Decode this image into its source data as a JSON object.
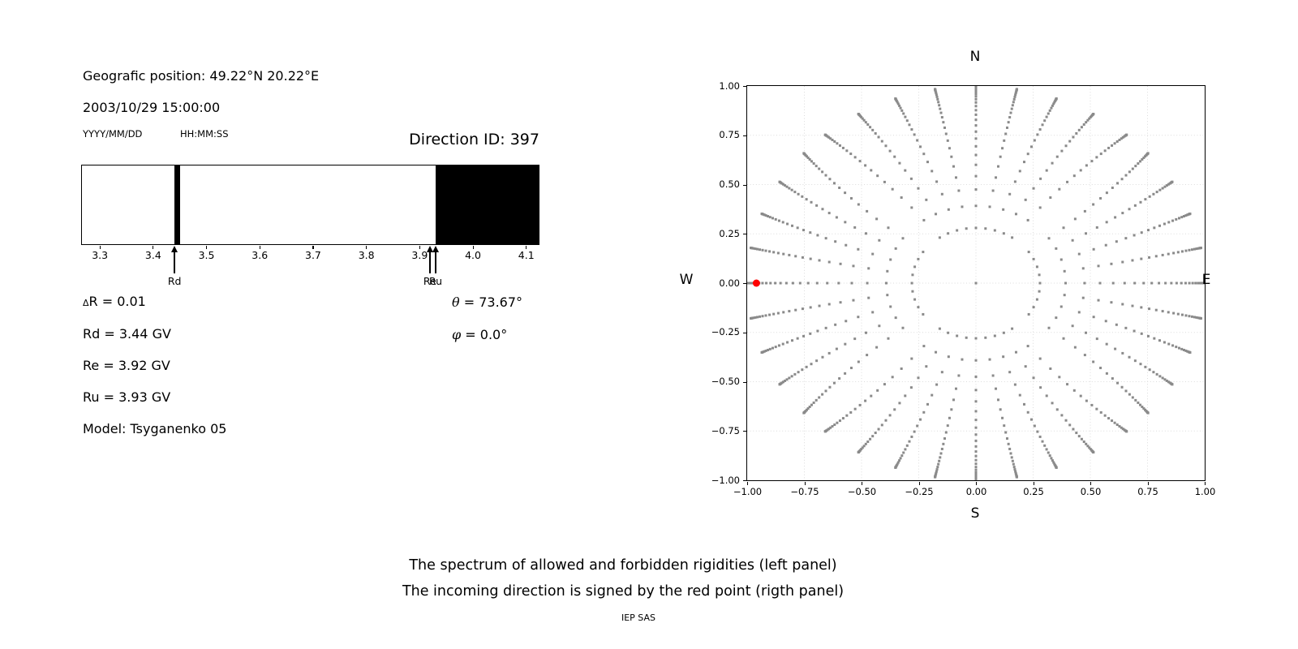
{
  "header": {
    "geographic_position": "Geografic position: 49.22°N 20.22°E",
    "datetime": "2003/10/29 15:00:00",
    "date_format": "YYYY/MM/DD",
    "time_format": "HH:MM:SS",
    "direction_id": "Direction ID: 397"
  },
  "info": {
    "delta_symbol": "Δ",
    "delta_rest": "R = 0.01",
    "rd": "Rd = 3.44 GV",
    "re": "Re = 3.92 GV",
    "ru": "Ru = 3.93 GV",
    "model": "Model: Tsyganenko 05",
    "theta_symbol": "θ",
    "theta_rest": " = 73.67°",
    "phi_symbol": "φ",
    "phi_rest": " = 0.0°"
  },
  "caption": {
    "line1": "The spectrum of allowed and forbidden rigidities (left panel)",
    "line2": "The incoming direction is signed by the red point (rigth panel)",
    "credit": "IEP SAS"
  },
  "chart_data": [
    {
      "type": "bar",
      "name": "rigidity-spectrum",
      "xlabel_unit": "GV",
      "xlim": [
        3.267,
        4.124
      ],
      "xticks": [
        3.3,
        3.4,
        3.5,
        3.6,
        3.7,
        3.8,
        3.9,
        4.0,
        4.1
      ],
      "xtick_labels": [
        "3.3",
        "3.4",
        "3.5",
        "3.6",
        "3.7",
        "3.8",
        "3.9",
        "4.0",
        "4.1"
      ],
      "allowed_color": "#ffffff",
      "forbidden_color": "#000000",
      "forbidden_intervals": [
        [
          3.44,
          3.451
        ],
        [
          3.93,
          4.124
        ]
      ],
      "arrows": [
        {
          "x": 3.44,
          "label": "Rd"
        },
        {
          "x": 3.919,
          "label": "Re"
        },
        {
          "x": 3.93,
          "label": "Ru"
        }
      ]
    },
    {
      "type": "scatter",
      "name": "incoming-direction-map",
      "xlim": [
        -1,
        1
      ],
      "ylim": [
        -1,
        1
      ],
      "tick_values": [
        -1,
        -0.75,
        -0.5,
        -0.25,
        0,
        0.25,
        0.5,
        0.75,
        1
      ],
      "xtick_labels": [
        "−1.00",
        "−0.75",
        "−0.50",
        "−0.25",
        "0.00",
        "0.25",
        "0.50",
        "0.75",
        "1.00"
      ],
      "ytick_labels": [
        "1.00",
        "0.75",
        "0.50",
        "0.25",
        "0.00",
        "−0.25",
        "−0.50",
        "−0.75",
        "−1.00"
      ],
      "grid": true,
      "grid_color": "#dcdcdc",
      "dot_color": "#8a8a8a",
      "marker": "square",
      "marker_size_px": 3,
      "cardinal_labels": {
        "top": "N",
        "bottom": "S",
        "left": "W",
        "right": "E"
      },
      "generator": {
        "azimuth_step_deg": 10,
        "cos_zenith_min": 0.0,
        "cos_zenith_max": 0.96,
        "cos_zenith_step": 0.04,
        "radius_rule": "sin(zenith)",
        "inner_radius": 0.28,
        "twist_base": 0.86,
        "twist_span": 0.17,
        "includes_center_dot": true
      },
      "highlight_point": {
        "x": -0.9597,
        "y": 0.0,
        "color": "#ff0000",
        "zenith_deg": 73.67,
        "azimuth_deg": 0.0,
        "radius_px": 4.5
      }
    }
  ]
}
